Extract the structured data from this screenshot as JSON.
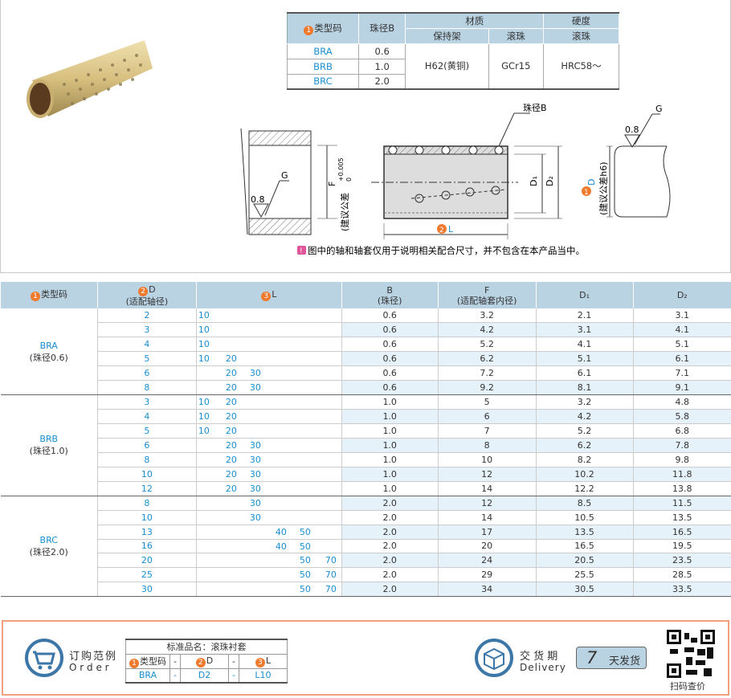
{
  "spec_table": {
    "headers": {
      "type": "类型码",
      "bead": "珠径B",
      "material": "材质",
      "hardness": "硬度",
      "cage": "保持架",
      "ball": "滚珠",
      "ball2": "滚珠"
    },
    "rows": [
      {
        "type": "BRA",
        "bead": "0.6"
      },
      {
        "type": "BRB",
        "bead": "1.0"
      },
      {
        "type": "BRC",
        "bead": "2.0"
      }
    ],
    "cage_material": "H62(黄铜)",
    "ball_material": "GCr15",
    "hardness": "HRC58～"
  },
  "diagram": {
    "bead_label": "珠径B",
    "F": "F",
    "F_tol": "(建议公差",
    "F_tol_sup": "+0.005",
    "F_tol_sub": "0",
    "G": "G",
    "roughness": "0.8",
    "D1": "D₁",
    "D2": "D₂",
    "L": "L",
    "D": "D",
    "D_tol": "(建议公差h6)",
    "num1": "1",
    "num2": "2",
    "note": "图中的轴和轴套仅用于说明相关配合尺寸，并不包含在本产品当中。"
  },
  "main_table": {
    "headers": {
      "type": "类型码",
      "D": "D",
      "D_sub": "(适配轴径)",
      "L": "L",
      "B": "B",
      "B_sub": "(珠径)",
      "F": "F",
      "F_sub": "(适配轴套内径)",
      "D1": "D₁",
      "D2": "D₂",
      "n1": "1",
      "n2": "2",
      "n3": "3"
    },
    "groups": [
      {
        "type": "BRA",
        "sub": "(珠径0.6)",
        "rows": [
          {
            "D": "2",
            "L": [
              "10",
              "",
              "",
              "",
              "",
              ""
            ],
            "B": "0.6",
            "F": "3.2",
            "D1": "2.1",
            "D2": "3.1"
          },
          {
            "D": "3",
            "L": [
              "10",
              "",
              "",
              "",
              "",
              ""
            ],
            "B": "0.6",
            "F": "4.2",
            "D1": "3.1",
            "D2": "4.1"
          },
          {
            "D": "4",
            "L": [
              "10",
              "",
              "",
              "",
              "",
              ""
            ],
            "B": "0.6",
            "F": "5.2",
            "D1": "4.1",
            "D2": "5.1"
          },
          {
            "D": "5",
            "L": [
              "10",
              "20",
              "",
              "",
              "",
              ""
            ],
            "B": "0.6",
            "F": "6.2",
            "D1": "5.1",
            "D2": "6.1"
          },
          {
            "D": "6",
            "L": [
              "",
              "20",
              "30",
              "",
              "",
              ""
            ],
            "B": "0.6",
            "F": "7.2",
            "D1": "6.1",
            "D2": "7.1"
          },
          {
            "D": "8",
            "L": [
              "",
              "20",
              "30",
              "",
              "",
              ""
            ],
            "B": "0.6",
            "F": "9.2",
            "D1": "8.1",
            "D2": "9.1"
          }
        ]
      },
      {
        "type": "BRB",
        "sub": "(珠径1.0)",
        "rows": [
          {
            "D": "3",
            "L": [
              "10",
              "20",
              "",
              "",
              "",
              ""
            ],
            "B": "1.0",
            "F": "5",
            "D1": "3.2",
            "D2": "4.8"
          },
          {
            "D": "4",
            "L": [
              "10",
              "20",
              "",
              "",
              "",
              ""
            ],
            "B": "1.0",
            "F": "6",
            "D1": "4.2",
            "D2": "5.8"
          },
          {
            "D": "5",
            "L": [
              "10",
              "20",
              "",
              "",
              "",
              ""
            ],
            "B": "1.0",
            "F": "7",
            "D1": "5.2",
            "D2": "6.8"
          },
          {
            "D": "6",
            "L": [
              "",
              "20",
              "30",
              "",
              "",
              ""
            ],
            "B": "1.0",
            "F": "8",
            "D1": "6.2",
            "D2": "7.8"
          },
          {
            "D": "8",
            "L": [
              "",
              "20",
              "30",
              "",
              "",
              ""
            ],
            "B": "1.0",
            "F": "10",
            "D1": "8.2",
            "D2": "9.8"
          },
          {
            "D": "10",
            "L": [
              "",
              "20",
              "30",
              "",
              "",
              ""
            ],
            "B": "1.0",
            "F": "12",
            "D1": "10.2",
            "D2": "11.8"
          },
          {
            "D": "12",
            "L": [
              "",
              "20",
              "30",
              "",
              "",
              ""
            ],
            "B": "1.0",
            "F": "14",
            "D1": "12.2",
            "D2": "13.8"
          }
        ]
      },
      {
        "type": "BRC",
        "sub": "(珠径2.0)",
        "rows": [
          {
            "D": "8",
            "L": [
              "",
              "",
              "30",
              "",
              "",
              ""
            ],
            "B": "2.0",
            "F": "12",
            "D1": "8.5",
            "D2": "11.5"
          },
          {
            "D": "10",
            "L": [
              "",
              "",
              "30",
              "",
              "",
              ""
            ],
            "B": "2.0",
            "F": "14",
            "D1": "10.5",
            "D2": "13.5"
          },
          {
            "D": "13",
            "L": [
              "",
              "",
              "",
              "40",
              "50",
              ""
            ],
            "B": "2.0",
            "F": "17",
            "D1": "13.5",
            "D2": "16.5"
          },
          {
            "D": "16",
            "L": [
              "",
              "",
              "",
              "40",
              "50",
              ""
            ],
            "B": "2.0",
            "F": "20",
            "D1": "16.5",
            "D2": "19.5"
          },
          {
            "D": "20",
            "L": [
              "",
              "",
              "",
              "",
              "50",
              "70"
            ],
            "B": "2.0",
            "F": "24",
            "D1": "20.5",
            "D2": "23.5"
          },
          {
            "D": "25",
            "L": [
              "",
              "",
              "",
              "",
              "50",
              "70"
            ],
            "B": "2.0",
            "F": "29",
            "D1": "25.5",
            "D2": "28.5"
          },
          {
            "D": "30",
            "L": [
              "",
              "",
              "",
              "",
              "50",
              "70"
            ],
            "B": "2.0",
            "F": "34",
            "D1": "30.5",
            "D2": "33.5"
          }
        ]
      }
    ]
  },
  "order": {
    "title_cn": "订购范例",
    "title_en": "O r d e r",
    "name": "标准品名：滚珠衬套",
    "h_type": "类型码",
    "dash": "-",
    "h_D": "D",
    "h_L": "L",
    "v_type": "BRA",
    "v_D": "D2",
    "v_L": "L10",
    "n1": "1",
    "n2": "2",
    "n3": "3"
  },
  "delivery": {
    "title_cn": "交 货 期",
    "title_en": "Delivery",
    "days": "7",
    "days_label": "天发货",
    "qr_label": "扫码查价"
  },
  "colors": {
    "accent": "#ef7a2e",
    "header_bg": "#b9d3e3",
    "link_blue": "#1a8ed0",
    "alt_row": "#e6f2fa",
    "order_border": "#f2a07c",
    "icon_blue": "#3d77a8"
  }
}
